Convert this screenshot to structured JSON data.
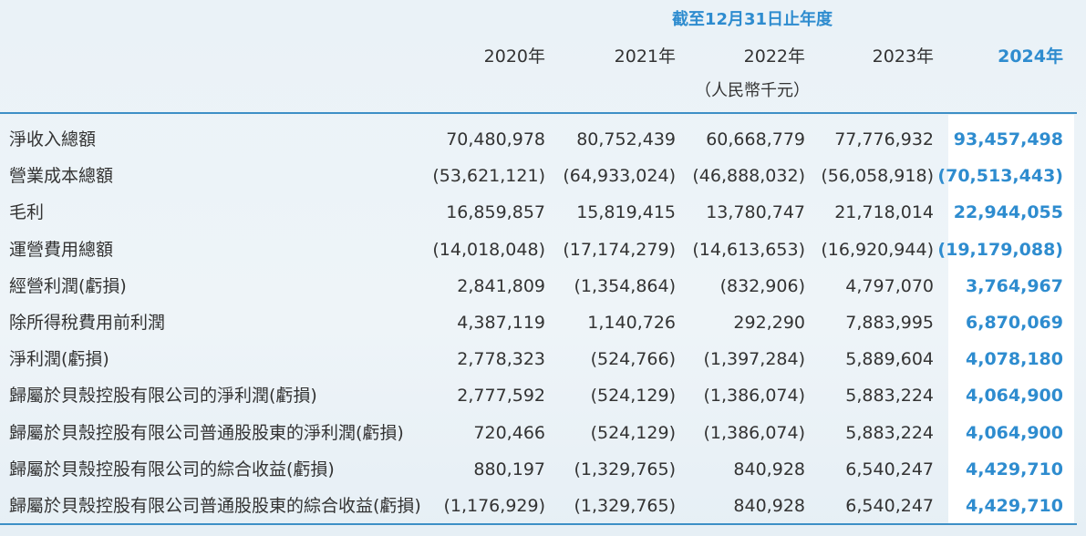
{
  "header": {
    "period": "截至12月31日止年度",
    "years": [
      "2020年",
      "2021年",
      "2022年",
      "2023年",
      "2024年"
    ],
    "unit": "（人民幣千元）"
  },
  "rows": [
    {
      "label": "淨收入總額",
      "values": [
        "70,480,978",
        "80,752,439",
        "60,668,779",
        "77,776,932",
        "93,457,498"
      ]
    },
    {
      "label": "營業成本總額",
      "values": [
        "(53,621,121)",
        "(64,933,024)",
        "(46,888,032)",
        "(56,058,918)",
        "(70,513,443)"
      ]
    },
    {
      "label": "毛利",
      "values": [
        "16,859,857",
        "15,819,415",
        "13,780,747",
        "21,718,014",
        "22,944,055"
      ]
    },
    {
      "label": "運營費用總額",
      "values": [
        "(14,018,048)",
        "(17,174,279)",
        "(14,613,653)",
        "(16,920,944)",
        "(19,179,088)"
      ]
    },
    {
      "label": "經營利潤(虧損)",
      "values": [
        "2,841,809",
        "(1,354,864)",
        "(832,906)",
        "4,797,070",
        "3,764,967"
      ]
    },
    {
      "label": "除所得稅費用前利潤",
      "values": [
        "4,387,119",
        "1,140,726",
        "292,290",
        "7,883,995",
        "6,870,069"
      ]
    },
    {
      "label": "淨利潤(虧損)",
      "values": [
        "2,778,323",
        "(524,766)",
        "(1,397,284)",
        "5,889,604",
        "4,078,180"
      ]
    },
    {
      "label": "歸屬於貝殼控股有限公司的淨利潤(虧損)",
      "values": [
        "2,777,592",
        "(524,129)",
        "(1,386,074)",
        "5,883,224",
        "4,064,900"
      ]
    },
    {
      "label": "歸屬於貝殼控股有限公司普通股股東的淨利潤(虧損)",
      "values": [
        "720,466",
        "(524,129)",
        "(1,386,074)",
        "5,883,224",
        "4,064,900"
      ]
    },
    {
      "label": "歸屬於貝殼控股有限公司的綜合收益(虧損)",
      "values": [
        "880,197",
        "(1,329,765)",
        "840,928",
        "6,540,247",
        "4,429,710"
      ]
    },
    {
      "label": "歸屬於貝殼控股有限公司普通股股東的綜合收益(虧損)",
      "values": [
        "(1,176,929)",
        "(1,329,765)",
        "840,928",
        "6,540,247",
        "4,429,710"
      ]
    }
  ]
}
